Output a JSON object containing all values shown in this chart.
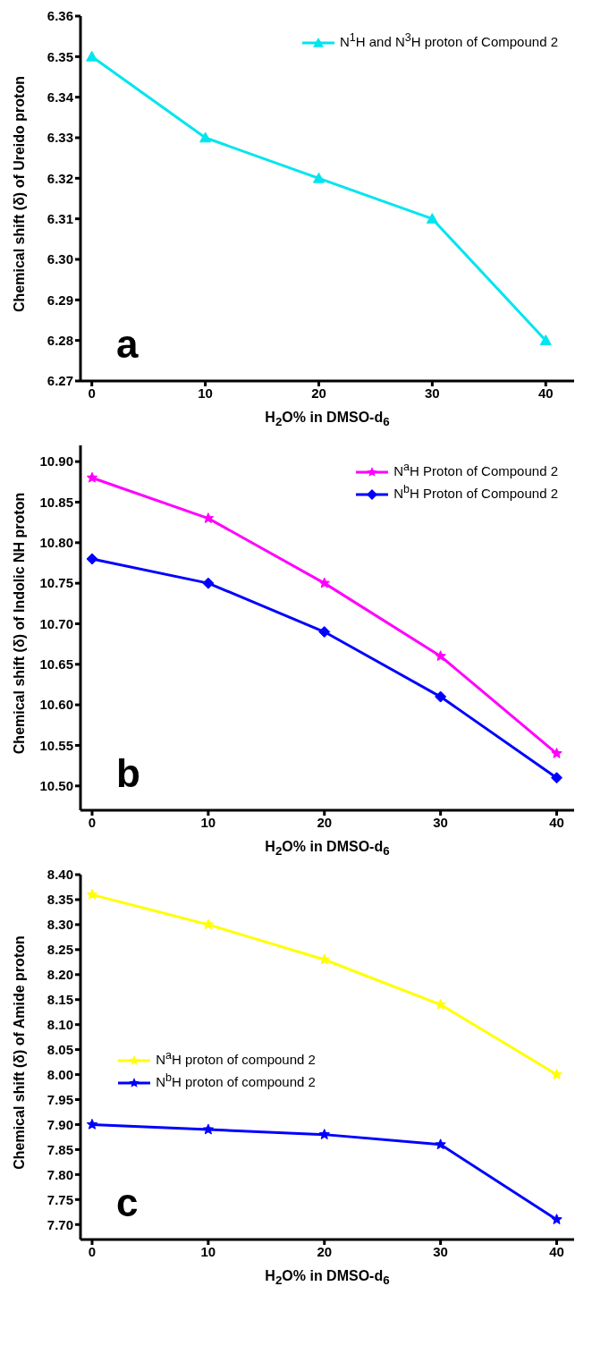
{
  "chart_data": [
    {
      "type": "line",
      "xlabel": "H$_{2}$O% in DMSO-d$_{6}$",
      "ylabel": "Chemical shift (δ) of Ureido proton",
      "x": [
        0,
        10,
        20,
        30,
        40
      ],
      "xlim": [
        -1,
        42.5
      ],
      "xticks": [
        0,
        10,
        20,
        30,
        40
      ],
      "ylim": [
        6.27,
        6.36
      ],
      "yticks": [
        6.27,
        6.28,
        6.29,
        {
          "value": 6.3,
          "label": "6.30"
        },
        6.31,
        6.32,
        6.33,
        6.34,
        6.35,
        6.36
      ],
      "grid": false,
      "legend": "top right",
      "marker": "triangle",
      "annotations": [
        "a"
      ],
      "series": [
        {
          "name": "N$^{1}$H and N$^{3}$H proton of Compound 2",
          "color": "#00e5ee",
          "values": [
            6.35,
            6.33,
            6.32,
            6.31,
            6.28
          ]
        }
      ]
    },
    {
      "type": "line",
      "xlabel": "H$_{2}$O% in DMSO-d$_{6}$",
      "ylabel": "Chemical shift (δ) of Indolic NH proton",
      "x": [
        0,
        10,
        20,
        30,
        40
      ],
      "xlim": [
        -1,
        41.5
      ],
      "xticks": [
        0,
        10,
        20,
        30,
        40
      ],
      "ylim": [
        10.47,
        10.92
      ],
      "yticks": [
        {
          "value": 10.5,
          "label": "10.50"
        },
        10.55,
        {
          "value": 10.6,
          "label": "10.60"
        },
        10.65,
        {
          "value": 10.7,
          "label": "10.70"
        },
        10.75,
        {
          "value": 10.8,
          "label": "10.80"
        },
        10.85,
        {
          "value": 10.9,
          "label": "10.90"
        }
      ],
      "grid": false,
      "legend": "top right",
      "annotations": [
        "b"
      ],
      "series": [
        {
          "name": "N$^{a}$H Proton of Compound 2",
          "color": "#ff00ff",
          "marker": "star",
          "values": [
            10.88,
            10.83,
            10.75,
            10.66,
            10.54
          ]
        },
        {
          "name": "N$^{b}$H Proton of Compound 2",
          "color": "#0000ff",
          "marker": "diamond",
          "values": [
            10.78,
            10.75,
            10.69,
            10.61,
            10.51
          ]
        }
      ]
    },
    {
      "type": "line",
      "xlabel": "H$_{2}$O% in DMSO-d$_{6}$",
      "ylabel": "Chemical shift (δ) of Amide proton",
      "x": [
        0,
        10,
        20,
        30,
        40
      ],
      "xlim": [
        -1,
        41.5
      ],
      "xticks": [
        0,
        10,
        20,
        30,
        40
      ],
      "ylim": [
        7.67,
        8.4
      ],
      "yticks": [
        {
          "value": 7.7,
          "label": "7.70"
        },
        7.75,
        {
          "value": 7.8,
          "label": "7.80"
        },
        7.85,
        {
          "value": 7.9,
          "label": "7.90"
        },
        7.95,
        {
          "value": 8,
          "label": "8.00"
        },
        8.05,
        {
          "value": 8.1,
          "label": "8.10"
        },
        8.15,
        {
          "value": 8.2,
          "label": "8.20"
        },
        8.25,
        {
          "value": 8.3,
          "label": "8.30"
        },
        8.35,
        {
          "value": 8.4,
          "label": "8.40"
        }
      ],
      "grid": false,
      "legend": "left",
      "marker": "star",
      "annotations": [
        "c"
      ],
      "series": [
        {
          "name": "N$^{a}$H proton of compound 2",
          "color": "#ffff00",
          "values": [
            8.36,
            8.3,
            8.23,
            8.14,
            8
          ]
        },
        {
          "name": "N$^{b}$H proton of compound 2",
          "color": "#0000ff",
          "values": [
            7.9,
            7.89,
            7.88,
            7.86,
            7.71
          ]
        }
      ]
    }
  ]
}
